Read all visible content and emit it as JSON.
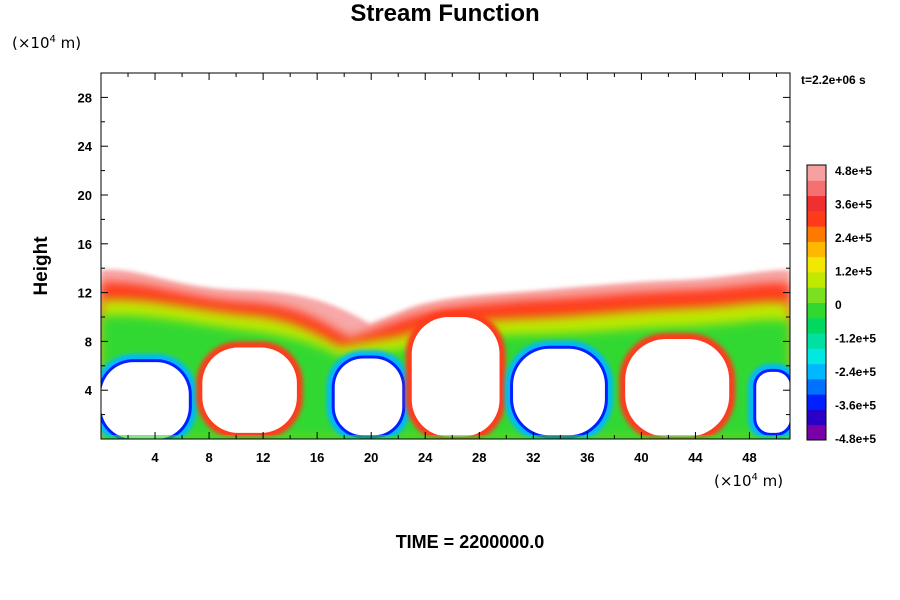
{
  "title": "Stream Function",
  "timestamp": "t=2.2e+06 s",
  "footer": "TIME = 2200000.0",
  "chart_data": {
    "type": "heatmap",
    "title": "Stream Function",
    "ylabel": "Height",
    "xunit_prefix": "(×10",
    "xunit_exp": "4",
    "xunit_suffix": " m)",
    "yunit_prefix": "(×10",
    "yunit_exp": "4",
    "yunit_suffix": " m)",
    "xlim": [
      0,
      51
    ],
    "ylim": [
      0,
      30
    ],
    "xticks": [
      4,
      8,
      12,
      16,
      20,
      24,
      28,
      32,
      36,
      40,
      44,
      48
    ],
    "yticks": [
      4,
      8,
      12,
      16,
      20,
      24,
      28
    ],
    "colorbar": {
      "min": -480000,
      "max": 480000,
      "labels": [
        "4.8e+5",
        "3.6e+5",
        "2.4e+5",
        "1.2e+5",
        "0",
        "-1.2e+5",
        "-2.4e+5",
        "-3.6e+5",
        "-4.8e+5"
      ],
      "colors": [
        "#7a00a8",
        "#2a00c8",
        "#0020ff",
        "#0070ff",
        "#00b8ff",
        "#00e8e0",
        "#00e0a0",
        "#00d860",
        "#30d830",
        "#7ae020",
        "#c0e800",
        "#f0e800",
        "#ffb800",
        "#ff7800",
        "#ff3a1a",
        "#f03030",
        "#f57070",
        "#f7a0a0"
      ]
    },
    "cells": [
      {
        "x": [
          0,
          6.5
        ],
        "y": [
          0,
          6.3
        ],
        "type": "negative"
      },
      {
        "x": [
          7.5,
          14.5
        ],
        "y": [
          0.5,
          7.5
        ],
        "type": "white"
      },
      {
        "x": [
          17.3,
          22.3
        ],
        "y": [
          0.3,
          6.6
        ],
        "type": "negative"
      },
      {
        "x": [
          23,
          29.5
        ],
        "y": [
          0.2,
          10
        ],
        "type": "white"
      },
      {
        "x": [
          30.5,
          37.3
        ],
        "y": [
          0.3,
          7.4
        ],
        "type": "negative"
      },
      {
        "x": [
          38.8,
          46.5
        ],
        "y": [
          0.2,
          8.2
        ],
        "type": "white"
      },
      {
        "x": [
          48.5,
          51
        ],
        "y": [
          0.5,
          5.5
        ],
        "type": "negative"
      }
    ]
  }
}
